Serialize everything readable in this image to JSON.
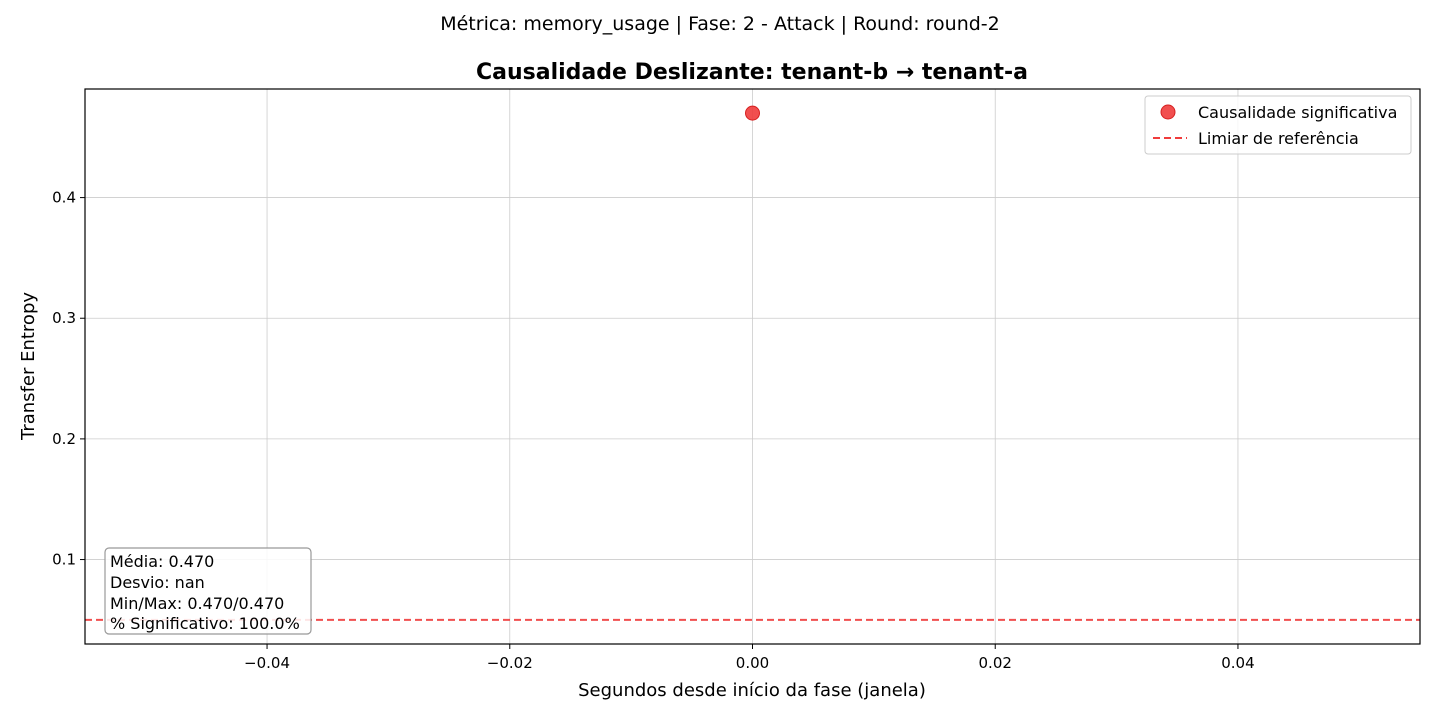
{
  "figure": {
    "suptitle": "Métrica: memory_usage | Fase: 2 - Attack | Round: round-2"
  },
  "chart_data": {
    "type": "scatter",
    "title": "Causalidade Deslizante: tenant-b → tenant-a",
    "xlabel": "Segundos desde início da fase (janela)",
    "ylabel": "Transfer Entropy",
    "xlim": [
      -0.055,
      0.055
    ],
    "ylim": [
      0.03,
      0.49
    ],
    "xticks": [
      -0.04,
      -0.02,
      0.0,
      0.02,
      0.04
    ],
    "xtick_labels": [
      "−0.04",
      "−0.02",
      "0.00",
      "0.02",
      "0.04"
    ],
    "yticks": [
      0.1,
      0.2,
      0.3,
      0.4
    ],
    "ytick_labels": [
      "0.1",
      "0.2",
      "0.3",
      "0.4"
    ],
    "grid": true,
    "legend_position": "top-right",
    "series": [
      {
        "name": "Causalidade significativa",
        "kind": "scatter",
        "color": "#f03c3c",
        "points": [
          {
            "x": 0.0,
            "y": 0.47
          }
        ]
      }
    ],
    "reference_line": {
      "name": "Limiar de referência",
      "y": 0.05,
      "color": "#f03c3c",
      "style": "dashed"
    },
    "stats_box": {
      "lines": [
        "Média: 0.470",
        "Desvio: nan",
        "Min/Max: 0.470/0.470",
        "% Significativo: 100.0%"
      ]
    }
  }
}
